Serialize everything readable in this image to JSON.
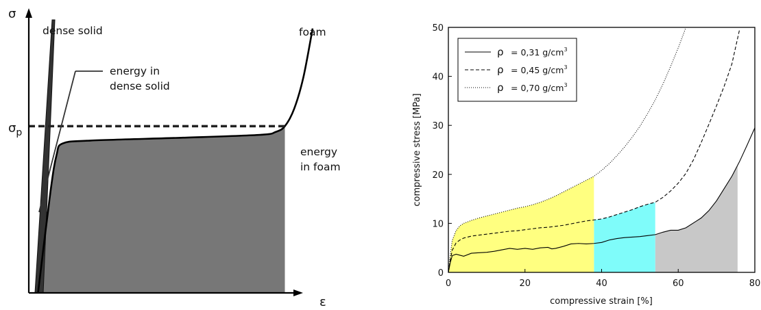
{
  "chart_data": [
    {
      "type": "area",
      "title": "",
      "xlabel": "ε",
      "ylabel": "σ",
      "plateau_label": "σ",
      "plateau_label_sub": "p",
      "annotations": {
        "dense_solid": "dense solid",
        "energy_dense_line1": "energy in",
        "energy_dense_line2": "dense solid",
        "foam": "foam",
        "energy_foam_line1": "energy",
        "energy_foam_line2": "in foam"
      },
      "series": [
        {
          "name": "dense solid",
          "x": [
            0.02,
            0.08
          ],
          "y": [
            0.0,
            0.95
          ]
        },
        {
          "name": "foam",
          "x": [
            0.03,
            0.07,
            0.09,
            0.11,
            0.2,
            0.5,
            0.75,
            0.8,
            0.83,
            0.86,
            0.89,
            0.92
          ],
          "y": [
            0.0,
            0.35,
            0.48,
            0.52,
            0.53,
            0.54,
            0.55,
            0.56,
            0.58,
            0.64,
            0.75,
            0.92
          ]
        }
      ],
      "plateau_stress": 0.58
    },
    {
      "type": "line",
      "title": "",
      "xlabel": "compressive strain [%]",
      "ylabel": "compressive stress [MPa]",
      "xlim": [
        0,
        80
      ],
      "ylim": [
        0,
        50
      ],
      "xticks": [
        "0",
        "20",
        "40",
        "60",
        "80"
      ],
      "yticks": [
        "0",
        "10",
        "20",
        "30",
        "40",
        "50"
      ],
      "legend_position": "top-left",
      "legend_symbol": "ρ",
      "series": [
        {
          "name": "= 0,31 g/cm",
          "unit_sup": "3",
          "style": "solid",
          "fill_color": "#c8c8c8",
          "fill_range": [
            54,
            75.5
          ],
          "x": [
            0,
            0.5,
            1,
            2,
            3,
            4,
            6,
            8,
            10,
            12,
            14,
            16,
            18,
            20,
            22,
            24,
            26,
            27,
            28,
            30,
            32,
            34,
            36,
            38,
            40,
            42,
            44,
            46,
            48,
            50,
            52,
            54,
            56,
            58,
            60,
            62,
            64,
            66,
            68,
            70,
            72,
            74,
            76,
            78,
            80
          ],
          "y": [
            0,
            2.0,
            3.4,
            3.7,
            3.5,
            3.3,
            3.9,
            4.0,
            4.1,
            4.3,
            4.6,
            4.9,
            4.7,
            4.9,
            4.7,
            5.0,
            5.1,
            4.8,
            4.9,
            5.3,
            5.8,
            5.9,
            5.8,
            5.9,
            6.1,
            6.6,
            6.9,
            7.1,
            7.2,
            7.3,
            7.5,
            7.7,
            8.2,
            8.6,
            8.6,
            9.1,
            10.1,
            11.1,
            12.6,
            14.6,
            17.1,
            19.6,
            22.6,
            26.0,
            29.5
          ]
        },
        {
          "name": "= 0,45 g/cm",
          "unit_sup": "3",
          "style": "dashed",
          "fill_color": "#7ffcfa",
          "fill_range": [
            38,
            54
          ],
          "x": [
            0,
            0.5,
            1,
            2,
            3,
            4,
            6,
            8,
            10,
            12,
            14,
            16,
            18,
            20,
            22,
            24,
            26,
            28,
            30,
            32,
            34,
            36,
            38,
            40,
            42,
            44,
            46,
            48,
            50,
            52,
            54,
            56,
            58,
            60,
            62,
            64,
            66,
            68,
            70,
            72,
            74,
            76
          ],
          "y": [
            0,
            2.5,
            4.5,
            6.0,
            6.6,
            7.0,
            7.4,
            7.6,
            7.8,
            8.0,
            8.2,
            8.4,
            8.5,
            8.7,
            8.9,
            9.1,
            9.2,
            9.4,
            9.6,
            9.9,
            10.2,
            10.5,
            10.7,
            10.9,
            11.3,
            11.8,
            12.3,
            12.8,
            13.4,
            13.9,
            14.3,
            15.3,
            16.6,
            18.2,
            20.2,
            23.0,
            26.5,
            30.2,
            34.0,
            38.0,
            42.5,
            49.5
          ]
        },
        {
          "name": "= 0,70 g/cm",
          "unit_sup": "3",
          "style": "dotted",
          "fill_color": "#ffff80",
          "fill_range": [
            0,
            38
          ],
          "x": [
            0,
            0.5,
            1,
            2,
            3,
            4,
            6,
            8,
            10,
            12,
            14,
            16,
            18,
            20,
            22,
            24,
            26,
            28,
            30,
            32,
            34,
            36,
            38,
            40,
            42,
            44,
            46,
            48,
            50,
            52,
            54,
            56,
            58,
            60,
            62
          ],
          "y": [
            0,
            3.5,
            6.5,
            8.5,
            9.5,
            10.0,
            10.6,
            11.1,
            11.5,
            11.9,
            12.3,
            12.7,
            13.1,
            13.4,
            13.8,
            14.3,
            14.9,
            15.6,
            16.4,
            17.2,
            18.0,
            18.8,
            19.6,
            20.8,
            22.2,
            23.8,
            25.6,
            27.6,
            29.8,
            32.4,
            35.2,
            38.4,
            42.0,
            45.8,
            50.0
          ]
        }
      ]
    }
  ]
}
